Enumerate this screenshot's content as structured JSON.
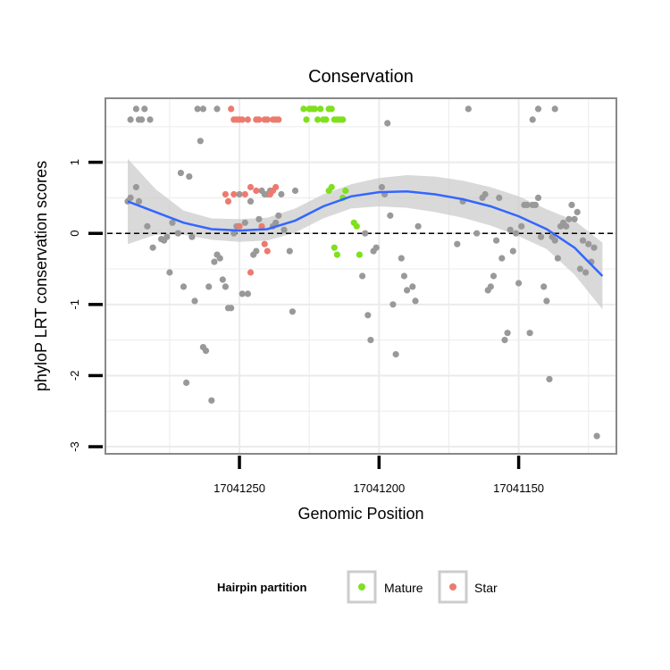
{
  "chart_data": {
    "type": "scatter",
    "title": "Conservation",
    "xlabel": "Genomic Position",
    "ylabel": "phyloP LRT conservation scores",
    "x_reversed": true,
    "xlim": [
      17041298,
      17041115
    ],
    "ylim": [
      -3.1,
      1.9
    ],
    "x_ticks": [
      17041250,
      17041200,
      17041150
    ],
    "x_tick_labels": [
      "17041250",
      "17041200",
      "17041150"
    ],
    "y_ticks": [
      -3,
      -2,
      -1,
      0,
      1
    ],
    "y_tick_labels": [
      "-3",
      "-2",
      "-1",
      "0",
      "1"
    ],
    "grid": true,
    "hline": {
      "y": 0,
      "style": "dashed"
    },
    "legend": {
      "title": "Hairpin partition",
      "position": "bottom",
      "entries": [
        "Mature",
        "Star"
      ]
    },
    "colors": {
      "Other": "#999999",
      "Mature": "#7fe01d",
      "Star": "#ec7b6f",
      "smooth": "#3366ff",
      "band": "#cccccc",
      "panel_border": "#888888"
    },
    "smooth_x": [
      17041290,
      17041280,
      17041270,
      17041260,
      17041250,
      17041240,
      17041230,
      17041220,
      17041210,
      17041200,
      17041190,
      17041180,
      17041170,
      17041160,
      17041150,
      17041140,
      17041130,
      17041120
    ],
    "smooth_y": [
      0.45,
      0.3,
      0.15,
      0.06,
      0.04,
      0.06,
      0.18,
      0.38,
      0.52,
      0.58,
      0.59,
      0.55,
      0.48,
      0.38,
      0.24,
      0.06,
      -0.2,
      -0.6
    ],
    "band_upper": [
      1.05,
      0.62,
      0.32,
      0.21,
      0.2,
      0.22,
      0.35,
      0.55,
      0.69,
      0.78,
      0.82,
      0.8,
      0.74,
      0.65,
      0.52,
      0.34,
      0.18,
      -0.13
    ],
    "band_lower": [
      -0.15,
      -0.02,
      -0.02,
      -0.09,
      -0.12,
      -0.1,
      0.01,
      0.21,
      0.35,
      0.38,
      0.36,
      0.3,
      0.22,
      0.11,
      -0.04,
      -0.22,
      -0.58,
      -1.07
    ],
    "series": [
      {
        "name": "Other",
        "points": [
          [
            17041289,
            1.6
          ],
          [
            17041287,
            1.75
          ],
          [
            17041286,
            1.6
          ],
          [
            17041285,
            1.6
          ],
          [
            17041284,
            1.75
          ],
          [
            17041282,
            1.6
          ],
          [
            17041265,
            1.75
          ],
          [
            17041263,
            1.75
          ],
          [
            17041258,
            1.75
          ],
          [
            17041197,
            1.55
          ],
          [
            17041168,
            1.75
          ],
          [
            17041145,
            1.6
          ],
          [
            17041143,
            1.75
          ],
          [
            17041137,
            1.75
          ],
          [
            17041290,
            0.45
          ],
          [
            17041289,
            0.5
          ],
          [
            17041287,
            0.65
          ],
          [
            17041286,
            0.45
          ],
          [
            17041283,
            0.1
          ],
          [
            17041281,
            -0.2
          ],
          [
            17041278,
            -0.08
          ],
          [
            17041277,
            -0.1
          ],
          [
            17041276,
            -0.05
          ],
          [
            17041275,
            -0.55
          ],
          [
            17041274,
            0.15
          ],
          [
            17041272,
            0.0
          ],
          [
            17041271,
            0.85
          ],
          [
            17041270,
            -0.75
          ],
          [
            17041269,
            -2.1
          ],
          [
            17041268,
            0.8
          ],
          [
            17041267,
            -0.05
          ],
          [
            17041266,
            -0.95
          ],
          [
            17041264,
            1.3
          ],
          [
            17041263,
            -1.6
          ],
          [
            17041262,
            -1.65
          ],
          [
            17041261,
            -0.75
          ],
          [
            17041260,
            -2.35
          ],
          [
            17041259,
            -0.4
          ],
          [
            17041258,
            -0.3
          ],
          [
            17041257,
            -0.35
          ],
          [
            17041256,
            -0.65
          ],
          [
            17041255,
            -0.75
          ],
          [
            17041254,
            -1.05
          ],
          [
            17041253,
            -1.05
          ],
          [
            17041252,
            0.0
          ],
          [
            17041251,
            0.1
          ],
          [
            17041250,
            0.55
          ],
          [
            17041249,
            -0.85
          ],
          [
            17041248,
            0.15
          ],
          [
            17041247,
            -0.85
          ],
          [
            17041246,
            0.45
          ],
          [
            17041245,
            -0.3
          ],
          [
            17041244,
            -0.25
          ],
          [
            17041243,
            0.2
          ],
          [
            17041242,
            0.6
          ],
          [
            17041241,
            0.55
          ],
          [
            17041240,
            0.55
          ],
          [
            17041239,
            0.6
          ],
          [
            17041238,
            0.1
          ],
          [
            17041237,
            0.15
          ],
          [
            17041236,
            0.25
          ],
          [
            17041235,
            0.55
          ],
          [
            17041234,
            0.05
          ],
          [
            17041232,
            -0.25
          ],
          [
            17041231,
            -1.1
          ],
          [
            17041230,
            0.6
          ],
          [
            17041206,
            -0.6
          ],
          [
            17041205,
            0.0
          ],
          [
            17041204,
            -1.15
          ],
          [
            17041203,
            -1.5
          ],
          [
            17041202,
            -0.25
          ],
          [
            17041201,
            -0.2
          ],
          [
            17041199,
            0.65
          ],
          [
            17041198,
            0.55
          ],
          [
            17041196,
            0.25
          ],
          [
            17041195,
            -1.0
          ],
          [
            17041194,
            -1.7
          ],
          [
            17041192,
            -0.35
          ],
          [
            17041191,
            -0.6
          ],
          [
            17041190,
            -0.8
          ],
          [
            17041188,
            -0.75
          ],
          [
            17041187,
            -0.95
          ],
          [
            17041186,
            0.1
          ],
          [
            17041172,
            -0.15
          ],
          [
            17041170,
            0.45
          ],
          [
            17041165,
            0.0
          ],
          [
            17041163,
            0.5
          ],
          [
            17041162,
            0.55
          ],
          [
            17041161,
            -0.8
          ],
          [
            17041160,
            -0.75
          ],
          [
            17041159,
            -0.6
          ],
          [
            17041158,
            -0.1
          ],
          [
            17041157,
            0.5
          ],
          [
            17041156,
            -0.35
          ],
          [
            17041155,
            -1.5
          ],
          [
            17041154,
            -1.4
          ],
          [
            17041153,
            0.05
          ],
          [
            17041152,
            -0.25
          ],
          [
            17041151,
            0.0
          ],
          [
            17041150,
            -0.7
          ],
          [
            17041149,
            0.1
          ],
          [
            17041148,
            0.4
          ],
          [
            17041147,
            0.4
          ],
          [
            17041146,
            -1.4
          ],
          [
            17041145,
            0.4
          ],
          [
            17041144,
            0.4
          ],
          [
            17041143,
            0.5
          ],
          [
            17041142,
            -0.05
          ],
          [
            17041141,
            -0.75
          ],
          [
            17041140,
            -0.95
          ],
          [
            17041139,
            -2.05
          ],
          [
            17041138,
            -0.05
          ],
          [
            17041137,
            -0.1
          ],
          [
            17041136,
            -0.35
          ],
          [
            17041135,
            0.1
          ],
          [
            17041134,
            0.15
          ],
          [
            17041133,
            0.1
          ],
          [
            17041132,
            0.2
          ],
          [
            17041131,
            0.4
          ],
          [
            17041130,
            0.2
          ],
          [
            17041129,
            0.3
          ],
          [
            17041128,
            -0.5
          ],
          [
            17041127,
            -0.1
          ],
          [
            17041126,
            -0.55
          ],
          [
            17041125,
            -0.15
          ],
          [
            17041124,
            -0.4
          ],
          [
            17041123,
            -0.2
          ],
          [
            17041122,
            -2.85
          ]
        ]
      },
      {
        "name": "Mature",
        "points": [
          [
            17041227,
            1.75
          ],
          [
            17041226,
            1.6
          ],
          [
            17041225,
            1.75
          ],
          [
            17041224,
            1.75
          ],
          [
            17041223,
            1.75
          ],
          [
            17041222,
            1.6
          ],
          [
            17041221,
            1.75
          ],
          [
            17041220,
            1.6
          ],
          [
            17041219,
            1.6
          ],
          [
            17041218,
            1.75
          ],
          [
            17041217,
            1.75
          ],
          [
            17041216,
            1.6
          ],
          [
            17041215,
            1.6
          ],
          [
            17041214,
            1.6
          ],
          [
            17041213,
            1.6
          ],
          [
            17041218,
            0.6
          ],
          [
            17041217,
            0.65
          ],
          [
            17041213,
            0.5
          ],
          [
            17041212,
            0.6
          ],
          [
            17041209,
            0.15
          ],
          [
            17041208,
            0.1
          ],
          [
            17041207,
            -0.3
          ],
          [
            17041216,
            -0.2
          ],
          [
            17041215,
            -0.3
          ]
        ]
      },
      {
        "name": "Star",
        "points": [
          [
            17041253,
            1.75
          ],
          [
            17041252,
            1.6
          ],
          [
            17041251,
            1.6
          ],
          [
            17041250,
            1.6
          ],
          [
            17041249,
            1.6
          ],
          [
            17041247,
            1.6
          ],
          [
            17041244,
            1.6
          ],
          [
            17041243,
            1.6
          ],
          [
            17041241,
            1.6
          ],
          [
            17041240,
            1.6
          ],
          [
            17041238,
            1.6
          ],
          [
            17041237,
            1.6
          ],
          [
            17041236,
            1.6
          ],
          [
            17041255,
            0.55
          ],
          [
            17041254,
            0.45
          ],
          [
            17041252,
            0.55
          ],
          [
            17041250,
            0.1
          ],
          [
            17041248,
            0.55
          ],
          [
            17041246,
            0.65
          ],
          [
            17041244,
            0.6
          ],
          [
            17041242,
            0.1
          ],
          [
            17041241,
            -0.15
          ],
          [
            17041240,
            -0.25
          ],
          [
            17041239,
            0.55
          ],
          [
            17041246,
            -0.55
          ],
          [
            17041238,
            0.6
          ],
          [
            17041237,
            0.65
          ]
        ]
      }
    ]
  }
}
